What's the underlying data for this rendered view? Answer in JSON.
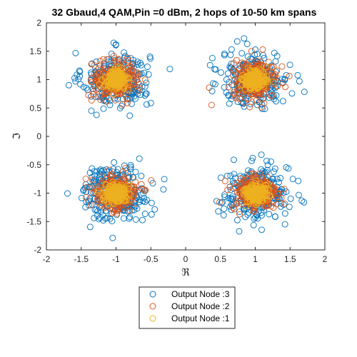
{
  "chart_data": {
    "type": "scatter",
    "title": "32 Gbaud,4 QAM,Pin =0 dBm, 2  hops of 10-50 km  spans",
    "xlabel": "ℜ",
    "ylabel": "ℑ",
    "xlim": [
      -2,
      2
    ],
    "ylim": [
      -2,
      2
    ],
    "xticks": [
      -2,
      -1.5,
      -1,
      -0.5,
      0,
      0.5,
      1,
      1.5,
      2
    ],
    "yticks": [
      -2,
      -1.5,
      -1,
      -0.5,
      0,
      0.5,
      1,
      1.5,
      2
    ],
    "xtick_labels": [
      "-2",
      "-1.5",
      "-1",
      "-0.5",
      "0",
      "0.5",
      "1",
      "1.5",
      "2"
    ],
    "ytick_labels": [
      "-2",
      "-1.5",
      "-1",
      "-0.5",
      "0",
      "0.5",
      "1",
      "1.5",
      "2"
    ],
    "grid": false,
    "marker": "open-circle",
    "legend_position": "below",
    "constellation_points": [
      [
        -1,
        1
      ],
      [
        1,
        1
      ],
      [
        -1,
        -1
      ],
      [
        1,
        -1
      ]
    ],
    "series": [
      {
        "name": "Output Node :3",
        "color": "#0072BD",
        "spread_std": 0.24
      },
      {
        "name": "Output Node :2",
        "color": "#D95319",
        "spread_std": 0.16
      },
      {
        "name": "Output Node :1",
        "color": "#EDB120",
        "spread_std": 0.08
      }
    ]
  }
}
